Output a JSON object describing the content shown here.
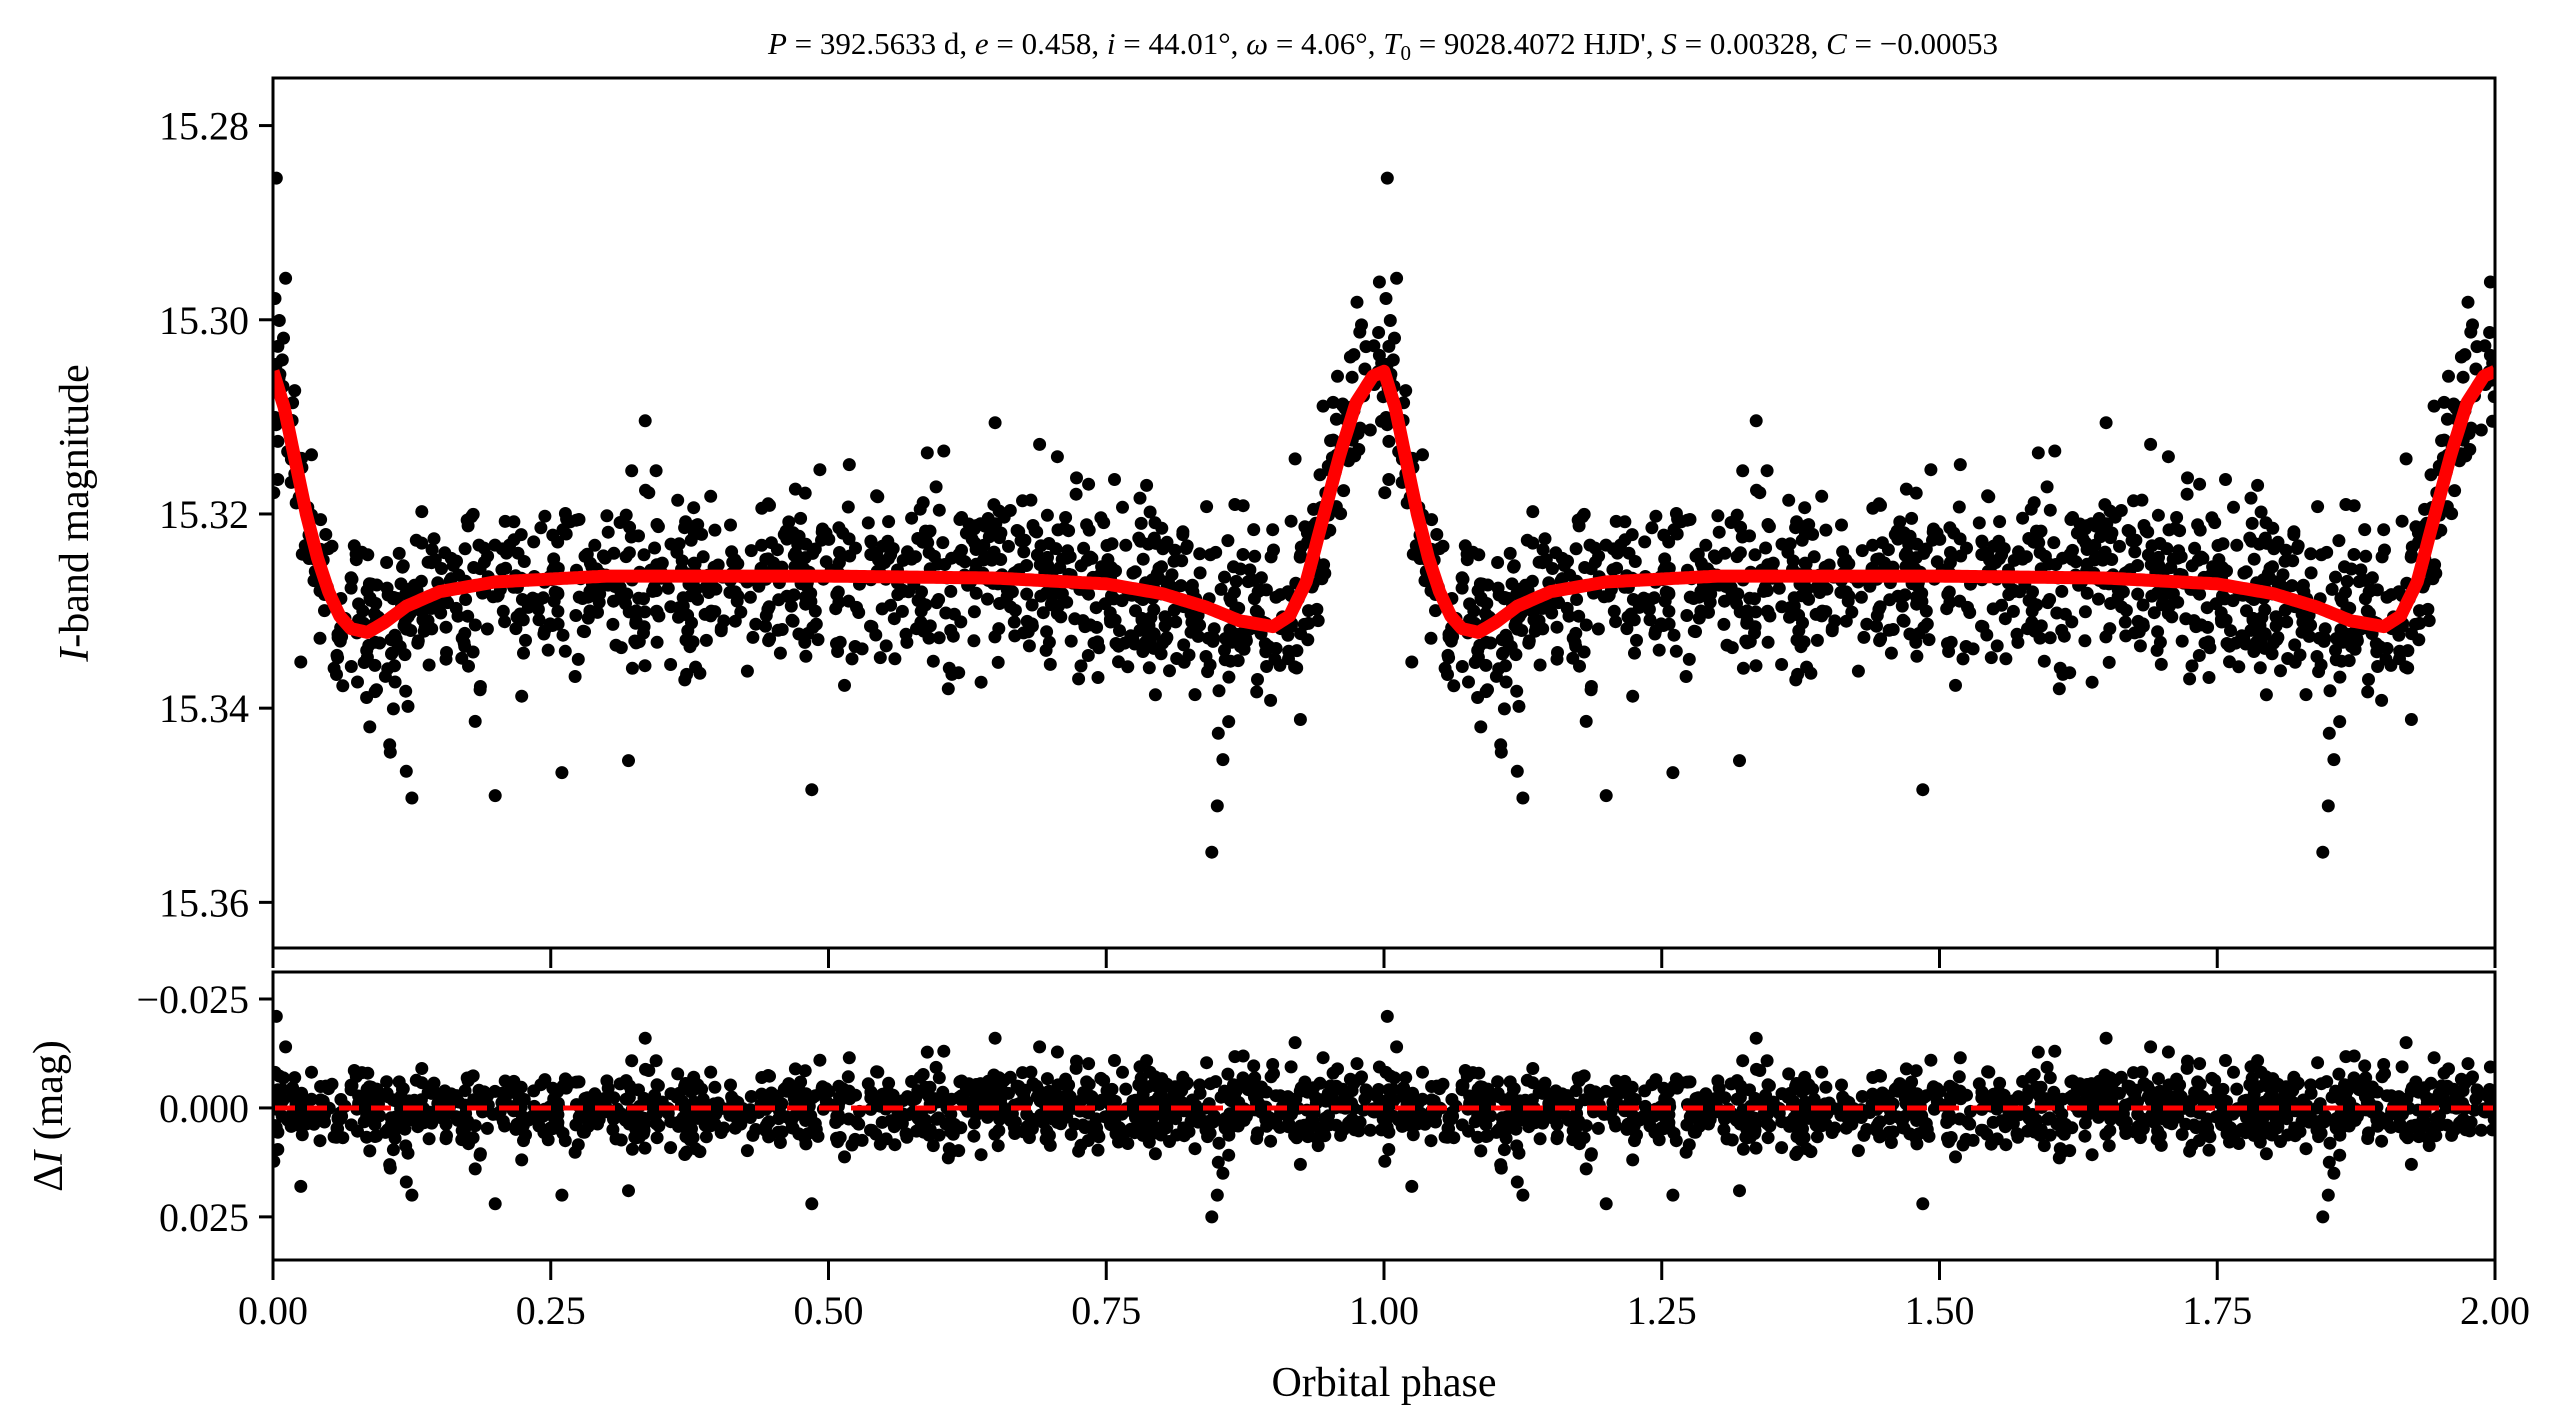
{
  "chart_data": [
    {
      "type": "scatter",
      "panel": "light-curve",
      "title_segments": [
        {
          "t": "P",
          "i": true
        },
        {
          "t": " = 392.5633 d, ",
          "i": false
        },
        {
          "t": "e",
          "i": true
        },
        {
          "t": " = 0.458, ",
          "i": false
        },
        {
          "t": "i",
          "i": true
        },
        {
          "t": " = 44.01°, ",
          "i": false
        },
        {
          "t": "ω",
          "i": true
        },
        {
          "t": " = 4.06°, ",
          "i": false
        },
        {
          "t": "T",
          "i": true
        },
        {
          "t": "0",
          "i": false,
          "sub": true
        },
        {
          "t": " = 9028.4072 HJD', ",
          "i": false
        },
        {
          "t": "S",
          "i": true
        },
        {
          "t": " = 0.00328, ",
          "i": false
        },
        {
          "t": "C",
          "i": true
        },
        {
          "t": " = −0.00053",
          "i": false
        }
      ],
      "ylabel_italic": "I",
      "ylabel_rest": "-band magnitude",
      "xlim": [
        0,
        2
      ],
      "ylim": [
        15.3647,
        15.2751
      ],
      "yticks": [
        15.28,
        15.3,
        15.32,
        15.34,
        15.36
      ],
      "ytick_labels": [
        "15.28",
        "15.30",
        "15.32",
        "15.34",
        "15.36"
      ],
      "model_curve": {
        "color": "#ff0000",
        "phase": [
          0.0,
          0.01,
          0.02,
          0.03,
          0.04,
          0.05,
          0.06,
          0.07,
          0.085,
          0.1,
          0.12,
          0.15,
          0.2,
          0.3,
          0.5,
          0.65,
          0.75,
          0.8,
          0.84,
          0.87,
          0.9,
          0.915,
          0.93,
          0.945,
          0.96,
          0.975,
          0.99,
          1.0
        ],
        "mag": [
          15.3053,
          15.309,
          15.3145,
          15.32,
          15.3245,
          15.328,
          15.3305,
          15.3318,
          15.3322,
          15.3312,
          15.3295,
          15.328,
          15.327,
          15.3264,
          15.3264,
          15.3266,
          15.3272,
          15.3282,
          15.3296,
          15.331,
          15.3316,
          15.3305,
          15.327,
          15.3205,
          15.314,
          15.3085,
          15.3058,
          15.3053
        ]
      },
      "points": {
        "color": "#000000",
        "n_per_cycle": 1150,
        "scatter_sigma_mag": 0.0045,
        "repeated_cycles": 2
      }
    },
    {
      "type": "scatter",
      "panel": "residuals",
      "ylabel_prefix": "Δ",
      "ylabel_italic": "I",
      "ylabel_rest": " (mag)",
      "xlabel": "Orbital phase",
      "xlim": [
        0,
        2
      ],
      "ylim": [
        0.0349,
        -0.0312
      ],
      "xticks": [
        0,
        0.25,
        0.5,
        0.75,
        1.0,
        1.25,
        1.5,
        1.75,
        2.0
      ],
      "xtick_labels": [
        "0.00",
        "0.25",
        "0.50",
        "0.75",
        "1.00",
        "1.25",
        "1.50",
        "1.75",
        "2.00"
      ],
      "yticks": [
        -0.025,
        0.0,
        0.025
      ],
      "ytick_labels": [
        "−0.025",
        "0.000",
        "0.025"
      ],
      "zero_line": {
        "value": 0,
        "color": "#ff0000",
        "style": "dashed"
      },
      "outliers": {
        "phase": [
          0.003,
          0.025,
          0.105,
          0.12,
          0.125,
          0.2,
          0.26,
          0.32,
          0.335,
          0.485,
          0.845,
          0.85,
          0.855,
          0.65,
          0.69,
          0.92
        ],
        "residual": [
          -0.021,
          0.018,
          0.013,
          0.017,
          0.02,
          0.022,
          0.02,
          0.019,
          -0.016,
          0.022,
          0.025,
          0.02,
          0.015,
          -0.016,
          -0.014,
          -0.015
        ]
      }
    }
  ]
}
